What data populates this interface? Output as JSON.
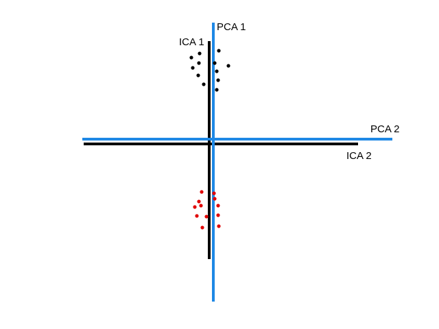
{
  "labels": {
    "pca1": "PCA 1",
    "ica1": "ICA 1",
    "pca2": "PCA 2",
    "ica2": "ICA 2"
  },
  "colors": {
    "pca_axis": "#1e88e5",
    "ica_axis": "#000000",
    "cluster_upper": "#000000",
    "cluster_lower": "#e00000"
  }
}
